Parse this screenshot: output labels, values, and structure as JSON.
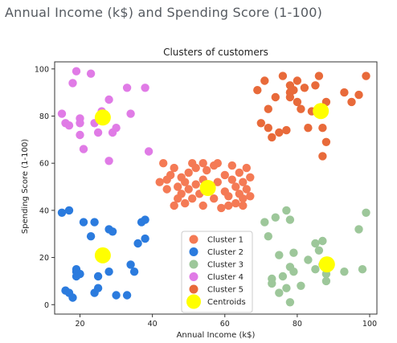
{
  "heading": "Annual Income (k$) and Spending Score (1-100)",
  "chart_data": {
    "type": "scatter",
    "title": "Clusters of customers",
    "xlabel": "Annual Income (k$)",
    "ylabel": "Spending Score (1-100)",
    "xlim": [
      13,
      102
    ],
    "ylim": [
      -4,
      103
    ],
    "xticks": [
      20,
      40,
      60,
      80,
      100
    ],
    "yticks": [
      0,
      20,
      40,
      60,
      80,
      100
    ],
    "grid": false,
    "legend_position": "lower-center",
    "series": [
      {
        "name": "Cluster 1",
        "color": "#f47a55",
        "points": [
          [
            42,
            52
          ],
          [
            43,
            60
          ],
          [
            44,
            49
          ],
          [
            45,
            55
          ],
          [
            46,
            42
          ],
          [
            46,
            58
          ],
          [
            47,
            50
          ],
          [
            47,
            45
          ],
          [
            48,
            54
          ],
          [
            48,
            47
          ],
          [
            49,
            52
          ],
          [
            49,
            43
          ],
          [
            50,
            56
          ],
          [
            50,
            49
          ],
          [
            51,
            45
          ],
          [
            52,
            51
          ],
          [
            52,
            58
          ],
          [
            53,
            47
          ],
          [
            54,
            53
          ],
          [
            54,
            42
          ],
          [
            55,
            57
          ],
          [
            56,
            49
          ],
          [
            57,
            45
          ],
          [
            58,
            52
          ],
          [
            58,
            60
          ],
          [
            59,
            41
          ],
          [
            60,
            55
          ],
          [
            60,
            48
          ],
          [
            61,
            46
          ],
          [
            62,
            53
          ],
          [
            62,
            59
          ],
          [
            63,
            43
          ],
          [
            63,
            50
          ],
          [
            64,
            56
          ],
          [
            64,
            47
          ],
          [
            65,
            52
          ],
          [
            65,
            42
          ],
          [
            66,
            49
          ],
          [
            66,
            58
          ],
          [
            67,
            46
          ],
          [
            67,
            54
          ],
          [
            54,
            60
          ],
          [
            57,
            59
          ],
          [
            44,
            53
          ],
          [
            51,
            60
          ],
          [
            61,
            42
          ],
          [
            65,
            45
          ]
        ]
      },
      {
        "name": "Cluster 2",
        "color": "#2b7bde",
        "points": [
          [
            15,
            39
          ],
          [
            16,
            6
          ],
          [
            17,
            40
          ],
          [
            17,
            5
          ],
          [
            18,
            3
          ],
          [
            19,
            14
          ],
          [
            19,
            15
          ],
          [
            20,
            13
          ],
          [
            21,
            35
          ],
          [
            23,
            29
          ],
          [
            24,
            35
          ],
          [
            24,
            5
          ],
          [
            25,
            12
          ],
          [
            28,
            32
          ],
          [
            28,
            14
          ],
          [
            29,
            31
          ],
          [
            30,
            4
          ],
          [
            33,
            4
          ],
          [
            34,
            17
          ],
          [
            35,
            14
          ],
          [
            36,
            26
          ],
          [
            37,
            35
          ],
          [
            38,
            36
          ],
          [
            38,
            28
          ],
          [
            19,
            12
          ],
          [
            25,
            7
          ]
        ]
      },
      {
        "name": "Cluster 3",
        "color": "#9dc79a",
        "points": [
          [
            71,
            35
          ],
          [
            72,
            29
          ],
          [
            73,
            11
          ],
          [
            73,
            9
          ],
          [
            74,
            37
          ],
          [
            75,
            5
          ],
          [
            76,
            12
          ],
          [
            77,
            40
          ],
          [
            78,
            36
          ],
          [
            78,
            16
          ],
          [
            78,
            1
          ],
          [
            79,
            22
          ],
          [
            79,
            14
          ],
          [
            81,
            8
          ],
          [
            85,
            26
          ],
          [
            85,
            15
          ],
          [
            86,
            23
          ],
          [
            87,
            27
          ],
          [
            88,
            13
          ],
          [
            88,
            10
          ],
          [
            93,
            14
          ],
          [
            97,
            32
          ],
          [
            98,
            15
          ],
          [
            99,
            39
          ],
          [
            77,
            7
          ],
          [
            83,
            19
          ],
          [
            87,
            17
          ],
          [
            75,
            21
          ]
        ]
      },
      {
        "name": "Cluster 4",
        "color": "#e07be6",
        "points": [
          [
            15,
            81
          ],
          [
            16,
            77
          ],
          [
            17,
            76
          ],
          [
            18,
            94
          ],
          [
            19,
            99
          ],
          [
            20,
            72
          ],
          [
            20,
            79
          ],
          [
            21,
            66
          ],
          [
            23,
            98
          ],
          [
            24,
            77
          ],
          [
            25,
            73
          ],
          [
            26,
            82
          ],
          [
            28,
            61
          ],
          [
            28,
            87
          ],
          [
            29,
            73
          ],
          [
            30,
            75
          ],
          [
            33,
            92
          ],
          [
            34,
            81
          ],
          [
            38,
            92
          ],
          [
            39,
            65
          ],
          [
            20,
            77
          ]
        ]
      },
      {
        "name": "Cluster 5",
        "color": "#e86a3a",
        "points": [
          [
            69,
            91
          ],
          [
            70,
            77
          ],
          [
            71,
            95
          ],
          [
            72,
            75
          ],
          [
            73,
            71
          ],
          [
            74,
            88
          ],
          [
            75,
            73
          ],
          [
            76,
            97
          ],
          [
            77,
            74
          ],
          [
            78,
            90
          ],
          [
            78,
            88
          ],
          [
            79,
            91
          ],
          [
            80,
            95
          ],
          [
            81,
            83
          ],
          [
            82,
            92
          ],
          [
            83,
            75
          ],
          [
            85,
            93
          ],
          [
            86,
            97
          ],
          [
            87,
            75
          ],
          [
            88,
            86
          ],
          [
            88,
            69
          ],
          [
            93,
            90
          ],
          [
            95,
            86
          ],
          [
            97,
            89
          ],
          [
            99,
            97
          ],
          [
            87,
            63
          ],
          [
            72,
            83
          ],
          [
            84,
            82
          ],
          [
            78,
            93
          ],
          [
            80,
            86
          ]
        ]
      },
      {
        "name": "Centroids",
        "color": "#ffff00",
        "points": [
          [
            26.3,
            79.4
          ],
          [
            55.3,
            49.5
          ],
          [
            86.5,
            82.1
          ],
          [
            26.3,
            20.9
          ],
          [
            88.2,
            17.1
          ]
        ]
      }
    ]
  }
}
